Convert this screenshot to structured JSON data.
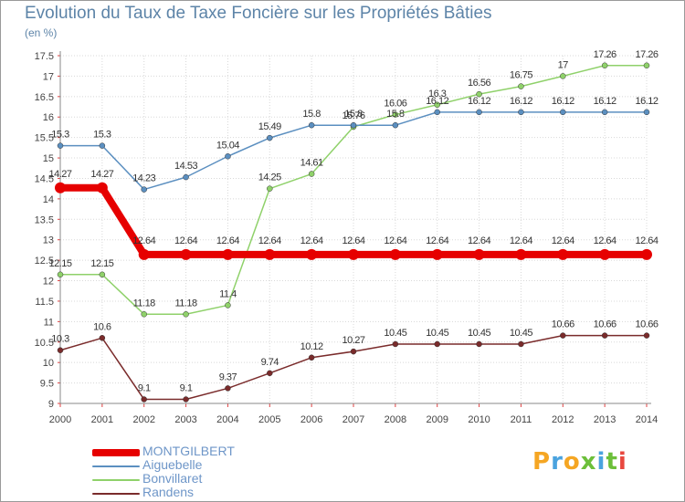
{
  "title": "Evolution du Taux de Taxe Foncière sur les Propriétés Bâties",
  "unit": "(en %)",
  "logo": {
    "text": [
      "P",
      "r",
      "o",
      "x",
      "i",
      "t",
      "i"
    ],
    "colors": [
      "#f5a623",
      "#4aa3df",
      "#f5a623",
      "#6cbf3a",
      "#4aa3df",
      "#6cbf3a",
      "#e8483f"
    ]
  },
  "chart_data": {
    "type": "line",
    "title": "Evolution du Taux de Taxe Foncière sur les Propriétés Bâties",
    "ylabel": "(en %)",
    "xlabel": "",
    "x": [
      "2000",
      "2001",
      "2002",
      "2003",
      "2004",
      "2005",
      "2006",
      "2007",
      "2008",
      "2009",
      "2010",
      "2011",
      "2012",
      "2013",
      "2014"
    ],
    "ylim": [
      9,
      17.5
    ],
    "yticks": [
      "9",
      "9.5",
      "10",
      "10.5",
      "11",
      "11.5",
      "12",
      "12.5",
      "13",
      "13.5",
      "14",
      "14.5",
      "15",
      "15.5",
      "16",
      "16.5",
      "17",
      "17.5"
    ],
    "legend_position": "bottom-left",
    "series": [
      {
        "name": "MONTGILBERT",
        "color": "#e60000",
        "values": [
          14.27,
          14.27,
          12.64,
          12.64,
          12.64,
          12.64,
          12.64,
          12.64,
          12.64,
          12.64,
          12.64,
          12.64,
          12.64,
          12.64,
          12.64
        ],
        "labels": [
          "14.27",
          "14.27",
          "12.64",
          "12.64",
          "12.64",
          "12.64",
          "12.64",
          "12.64",
          "12.64",
          "12.64",
          "12.64",
          "12.64",
          "12.64",
          "12.64",
          "12.64"
        ]
      },
      {
        "name": "Aiguebelle",
        "color": "#5b8fc0",
        "values": [
          15.3,
          15.3,
          14.23,
          14.53,
          15.04,
          15.49,
          15.8,
          15.8,
          15.8,
          16.12,
          16.12,
          16.12,
          16.12,
          16.12,
          16.12
        ],
        "labels": [
          "15.3",
          "15.3",
          "14.23",
          "14.53",
          "15.04",
          "15.49",
          "15.8",
          "15.8",
          "15.8",
          "16.12",
          "16.12",
          "16.12",
          "16.12",
          "16.12",
          "16.12"
        ]
      },
      {
        "name": "Bonvillaret",
        "color": "#8fd16a",
        "values": [
          12.15,
          12.15,
          11.18,
          11.18,
          11.4,
          14.25,
          14.61,
          15.76,
          16.06,
          16.3,
          16.56,
          16.75,
          17,
          17.26,
          17.26
        ],
        "labels": [
          "12.15",
          "12.15",
          "11.18",
          "11.18",
          "11.4",
          "14.25",
          "14.61",
          "15.76",
          "16.06",
          "16.3",
          "16.56",
          "16.75",
          "17",
          "17.26",
          "17.26"
        ]
      },
      {
        "name": "Randens",
        "color": "#7a2b2b",
        "values": [
          10.3,
          10.6,
          9.1,
          9.1,
          9.37,
          9.74,
          10.12,
          10.27,
          10.45,
          10.45,
          10.45,
          10.45,
          10.66,
          10.66,
          10.66
        ],
        "labels": [
          "10.3",
          "10.6",
          "9.1",
          "9.1",
          "9.37",
          "9.74",
          "10.12",
          "10.27",
          "10.45",
          "10.45",
          "10.45",
          "10.45",
          "10.66",
          "10.66",
          "10.66"
        ]
      }
    ]
  }
}
